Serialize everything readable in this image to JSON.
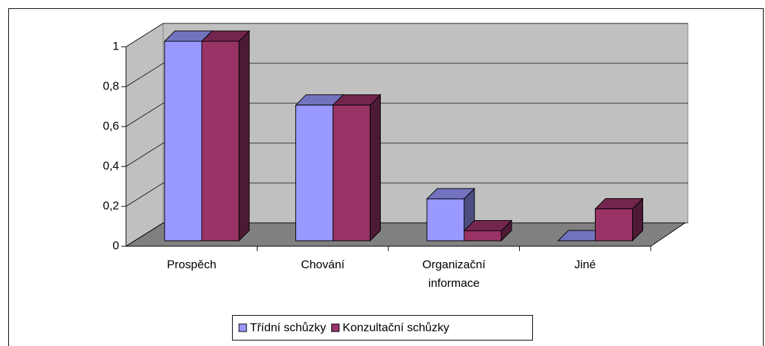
{
  "chart_data": {
    "type": "bar3d",
    "categories": [
      "Prospěch",
      "Chování",
      "Organizační informace",
      "Jiné"
    ],
    "series": [
      {
        "name": "Třídní schůzky",
        "color": "#9999ff",
        "values": [
          1,
          0.68,
          0.21,
          0
        ]
      },
      {
        "name": "Konzultační schůzky",
        "color": "#993366",
        "values": [
          1,
          0.68,
          0.05,
          0.16
        ]
      }
    ],
    "ylim": [
      0,
      1
    ],
    "yticks": [
      0,
      {
        "value": 0.2,
        "label": "0,2"
      },
      {
        "value": 0.4,
        "label": "0,4"
      },
      {
        "value": 0.6,
        "label": "0,6"
      },
      {
        "value": 0.8,
        "label": "0,8"
      },
      1
    ],
    "grid": true,
    "legend": "bottom"
  }
}
